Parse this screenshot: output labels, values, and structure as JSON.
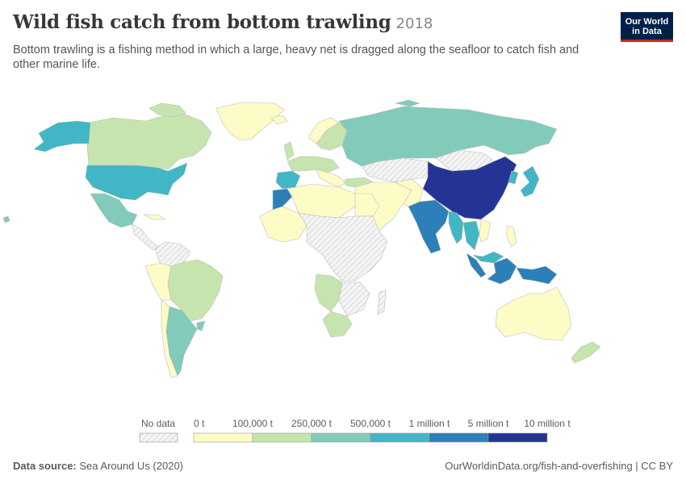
{
  "header": {
    "title": "Wild fish catch from bottom trawling",
    "year": "2018",
    "subtitle": "Bottom trawling is a fishing method in which a large, heavy net is dragged along the seafloor to catch fish and other marine life.",
    "logo_line1": "Our World",
    "logo_line2": "in Data"
  },
  "colors": {
    "bin0": "#fefcc6",
    "bin1": "#c6e5ae",
    "bin2": "#82cbbb",
    "bin3": "#41b6c4",
    "bin4": "#2c7fb8",
    "bin5": "#253494",
    "nodata_fill": "#eeeeee",
    "border": "#bdbdbd",
    "ocean": "#ffffff"
  },
  "legend": {
    "nodata_label": "No data",
    "tick_labels": [
      "0 t",
      "100,000 t",
      "250,000 t",
      "500,000 t",
      "1 million t",
      "5 million t",
      "10 million t"
    ]
  },
  "footer": {
    "source_label": "Data source:",
    "source_value": "Sea Around Us (2020)",
    "right_text": "OurWorldinData.org/fish-and-overfishing | CC BY"
  }
}
